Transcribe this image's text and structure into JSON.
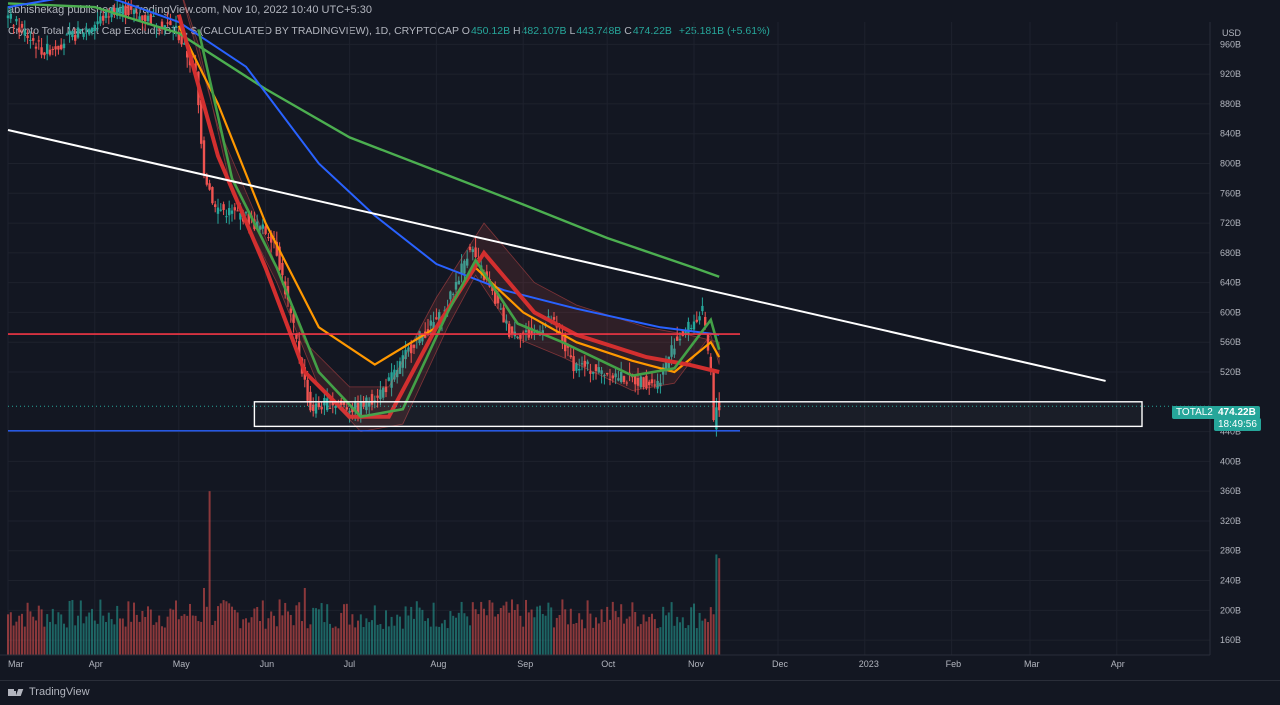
{
  "header": {
    "publisher": "abhishekag published on TradingView.com, Nov 10, 2022 10:40 UTC+5:30"
  },
  "legend": {
    "title": "Crypto Total Market Cap Exclude BTC, $ (CALCULATED BY TRADINGVIEW), 1D, CRYPTOCAP",
    "open_label": "O",
    "open": "450.12B",
    "high_label": "H",
    "high": "482.107B",
    "low_label": "L",
    "low": "443.748B",
    "close_label": "C",
    "close": "474.22B",
    "change": "+25.181B (+5.61%)"
  },
  "price_tag": {
    "symbol": "TOTAL2",
    "price": "474.22B",
    "countdown": "18:49:56"
  },
  "footer": {
    "brand": "TradingView"
  },
  "colors": {
    "background": "#131722",
    "up": "#26a69a",
    "down": "#ef5350",
    "ma_blue": "#2962ff",
    "ma_green": "#4caf50",
    "ma_orange": "#ff9800",
    "trendline": "#ffffff",
    "support_red": "#f23645"
  },
  "chart_data": {
    "type": "line",
    "currency_label": "USD",
    "y_ticks": [
      "960B",
      "920B",
      "880B",
      "840B",
      "800B",
      "760B",
      "720B",
      "680B",
      "640B",
      "600B",
      "560B",
      "520B",
      "440B",
      "400B",
      "360B",
      "320B",
      "280B",
      "240B",
      "200B",
      "160B"
    ],
    "x_ticks": [
      "Mar",
      "Apr",
      "May",
      "Jun",
      "Jul",
      "Aug",
      "Sep",
      "Oct",
      "Nov",
      "Dec",
      "2023",
      "Feb",
      "Mar",
      "Apr"
    ],
    "ylim": [
      140,
      990
    ],
    "price_path_B": [
      [
        "2022-03-01",
        1000
      ],
      [
        "2022-03-15",
        950
      ],
      [
        "2022-04-01",
        985
      ],
      [
        "2022-04-10",
        1010
      ],
      [
        "2022-05-01",
        980
      ],
      [
        "2022-05-08",
        920
      ],
      [
        "2022-05-11",
        790
      ],
      [
        "2022-05-15",
        740
      ],
      [
        "2022-05-25",
        730
      ],
      [
        "2022-06-05",
        700
      ],
      [
        "2022-06-13",
        560
      ],
      [
        "2022-06-18",
        470
      ],
      [
        "2022-06-25",
        480
      ],
      [
        "2022-07-05",
        470
      ],
      [
        "2022-07-15",
        500
      ],
      [
        "2022-07-25",
        560
      ],
      [
        "2022-08-05",
        600
      ],
      [
        "2022-08-14",
        690
      ],
      [
        "2022-08-20",
        640
      ],
      [
        "2022-08-28",
        575
      ],
      [
        "2022-09-05",
        570
      ],
      [
        "2022-09-12",
        590
      ],
      [
        "2022-09-20",
        530
      ],
      [
        "2022-10-01",
        520
      ],
      [
        "2022-10-10",
        510
      ],
      [
        "2022-10-20",
        505
      ],
      [
        "2022-10-26",
        560
      ],
      [
        "2022-11-05",
        600
      ],
      [
        "2022-11-08",
        520
      ],
      [
        "2022-11-09",
        450
      ],
      [
        "2022-11-10",
        474
      ]
    ],
    "ma_long_green": [
      [
        "2022-03-01",
        1015
      ],
      [
        "2022-04-01",
        1010
      ],
      [
        "2022-05-01",
        975
      ],
      [
        "2022-06-01",
        900
      ],
      [
        "2022-07-01",
        835
      ],
      [
        "2022-08-01",
        790
      ],
      [
        "2022-09-01",
        745
      ],
      [
        "2022-10-01",
        700
      ],
      [
        "2022-11-01",
        660
      ],
      [
        "2022-11-10",
        648
      ]
    ],
    "ma_mid_blue": [
      [
        "2022-03-01",
        1010
      ],
      [
        "2022-04-01",
        1030
      ],
      [
        "2022-05-01",
        990
      ],
      [
        "2022-05-25",
        930
      ],
      [
        "2022-06-20",
        800
      ],
      [
        "2022-07-10",
        730
      ],
      [
        "2022-08-01",
        665
      ],
      [
        "2022-08-25",
        630
      ],
      [
        "2022-09-20",
        605
      ],
      [
        "2022-10-20",
        580
      ],
      [
        "2022-11-10",
        570
      ]
    ],
    "ma_short_orange": [
      [
        "2022-05-01",
        985
      ],
      [
        "2022-05-15",
        880
      ],
      [
        "2022-06-01",
        720
      ],
      [
        "2022-06-20",
        580
      ],
      [
        "2022-07-10",
        530
      ],
      [
        "2022-08-01",
        580
      ],
      [
        "2022-08-15",
        660
      ],
      [
        "2022-09-01",
        600
      ],
      [
        "2022-09-20",
        560
      ],
      [
        "2022-10-10",
        535
      ],
      [
        "2022-10-25",
        520
      ],
      [
        "2022-11-07",
        560
      ],
      [
        "2022-11-10",
        540
      ]
    ],
    "ma_fast_red": [
      [
        "2022-05-01",
        1000
      ],
      [
        "2022-05-15",
        810
      ],
      [
        "2022-06-01",
        660
      ],
      [
        "2022-06-15",
        520
      ],
      [
        "2022-07-01",
        460
      ],
      [
        "2022-07-15",
        460
      ],
      [
        "2022-08-01",
        580
      ],
      [
        "2022-08-18",
        680
      ],
      [
        "2022-09-05",
        600
      ],
      [
        "2022-09-20",
        570
      ],
      [
        "2022-10-15",
        540
      ],
      [
        "2022-10-30",
        530
      ],
      [
        "2022-11-10",
        520
      ]
    ],
    "ma_fast_green": [
      [
        "2022-05-08",
        980
      ],
      [
        "2022-05-20",
        780
      ],
      [
        "2022-06-05",
        660
      ],
      [
        "2022-06-20",
        520
      ],
      [
        "2022-07-05",
        460
      ],
      [
        "2022-07-20",
        470
      ],
      [
        "2022-08-05",
        600
      ],
      [
        "2022-08-15",
        670
      ],
      [
        "2022-08-30",
        585
      ],
      [
        "2022-09-15",
        560
      ],
      [
        "2022-10-10",
        515
      ],
      [
        "2022-10-25",
        525
      ],
      [
        "2022-11-07",
        590
      ],
      [
        "2022-11-10",
        550
      ]
    ],
    "trendline": [
      [
        "2022-03-01",
        845
      ],
      [
        "2023-03-28",
        508
      ]
    ],
    "support_red_level": 571,
    "support_blue_level": 441,
    "zone_rect": {
      "from": "2022-05-28",
      "to": "2023-04-10",
      "low": 447,
      "high": 480
    },
    "volume": {
      "scale_label": "",
      "spike_dates": [
        [
          "2022-05-12",
          360
        ],
        [
          "2022-05-10",
          230
        ],
        [
          "2022-06-15",
          230
        ],
        [
          "2022-11-09",
          275
        ],
        [
          "2022-11-10",
          270
        ]
      ]
    }
  }
}
